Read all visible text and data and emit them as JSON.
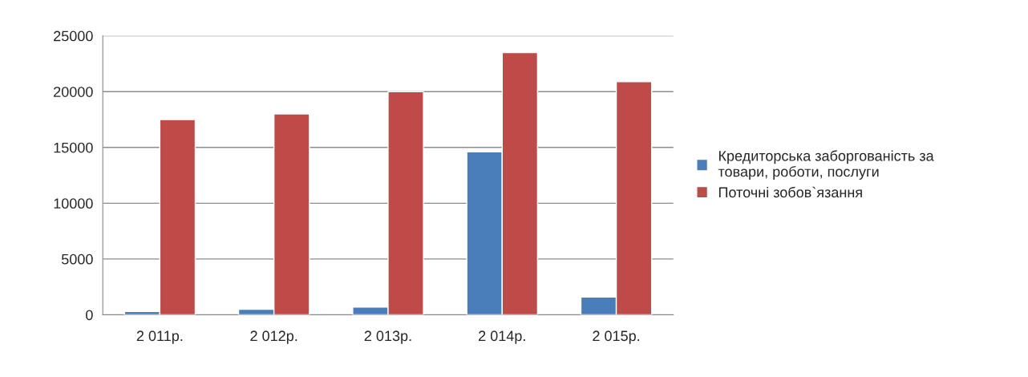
{
  "chart_data": {
    "type": "bar",
    "categories": [
      "2 011р.",
      "2 012р.",
      "2 013р.",
      "2 014р.",
      "2 015р."
    ],
    "series": [
      {
        "name": "Кредиторська заборгованість за товари, роботи, послуги",
        "color": "#4a7ebb",
        "values": [
          300,
          500,
          700,
          14600,
          1600
        ]
      },
      {
        "name": "Поточні зобов`язання",
        "color": "#be4b48",
        "values": [
          17500,
          18000,
          20000,
          23500,
          20900
        ]
      }
    ],
    "ylim": [
      0,
      25000
    ],
    "yticks": [
      0,
      5000,
      10000,
      15000,
      20000,
      25000
    ],
    "grid": "y",
    "legend": "right"
  }
}
